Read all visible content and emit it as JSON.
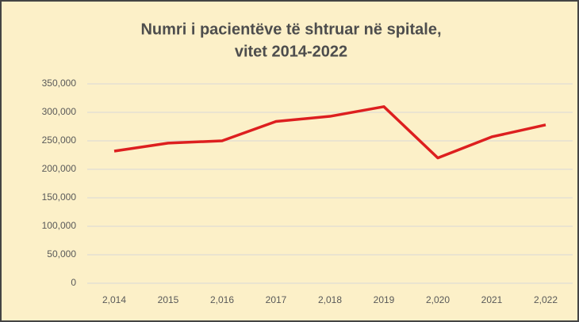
{
  "chart_data": {
    "type": "line",
    "title": [
      "Numri i pacientëve të shtruar në spitale,",
      "vitet 2014-2022"
    ],
    "categories": [
      "2,014",
      "2015",
      "2,016",
      "2017",
      "2,018",
      "2019",
      "2,020",
      "2021",
      "2,022"
    ],
    "series": [
      {
        "name": null,
        "color": "#dd1f1f",
        "values": [
          232000,
          246000,
          250000,
          284000,
          293000,
          310000,
          220000,
          257000,
          278000
        ]
      }
    ],
    "ylim": [
      0,
      350000
    ],
    "yticks": [
      0,
      {
        "value": 50000,
        "label": "50,000"
      },
      {
        "value": 100000,
        "label": "100,000"
      },
      {
        "value": 150000,
        "label": "150,000"
      },
      {
        "value": 200000,
        "label": "200,000"
      },
      {
        "value": 250000,
        "label": "250,000"
      },
      {
        "value": 300000,
        "label": "300,000"
      },
      {
        "value": 350000,
        "label": "350,000"
      }
    ],
    "grid": true
  }
}
